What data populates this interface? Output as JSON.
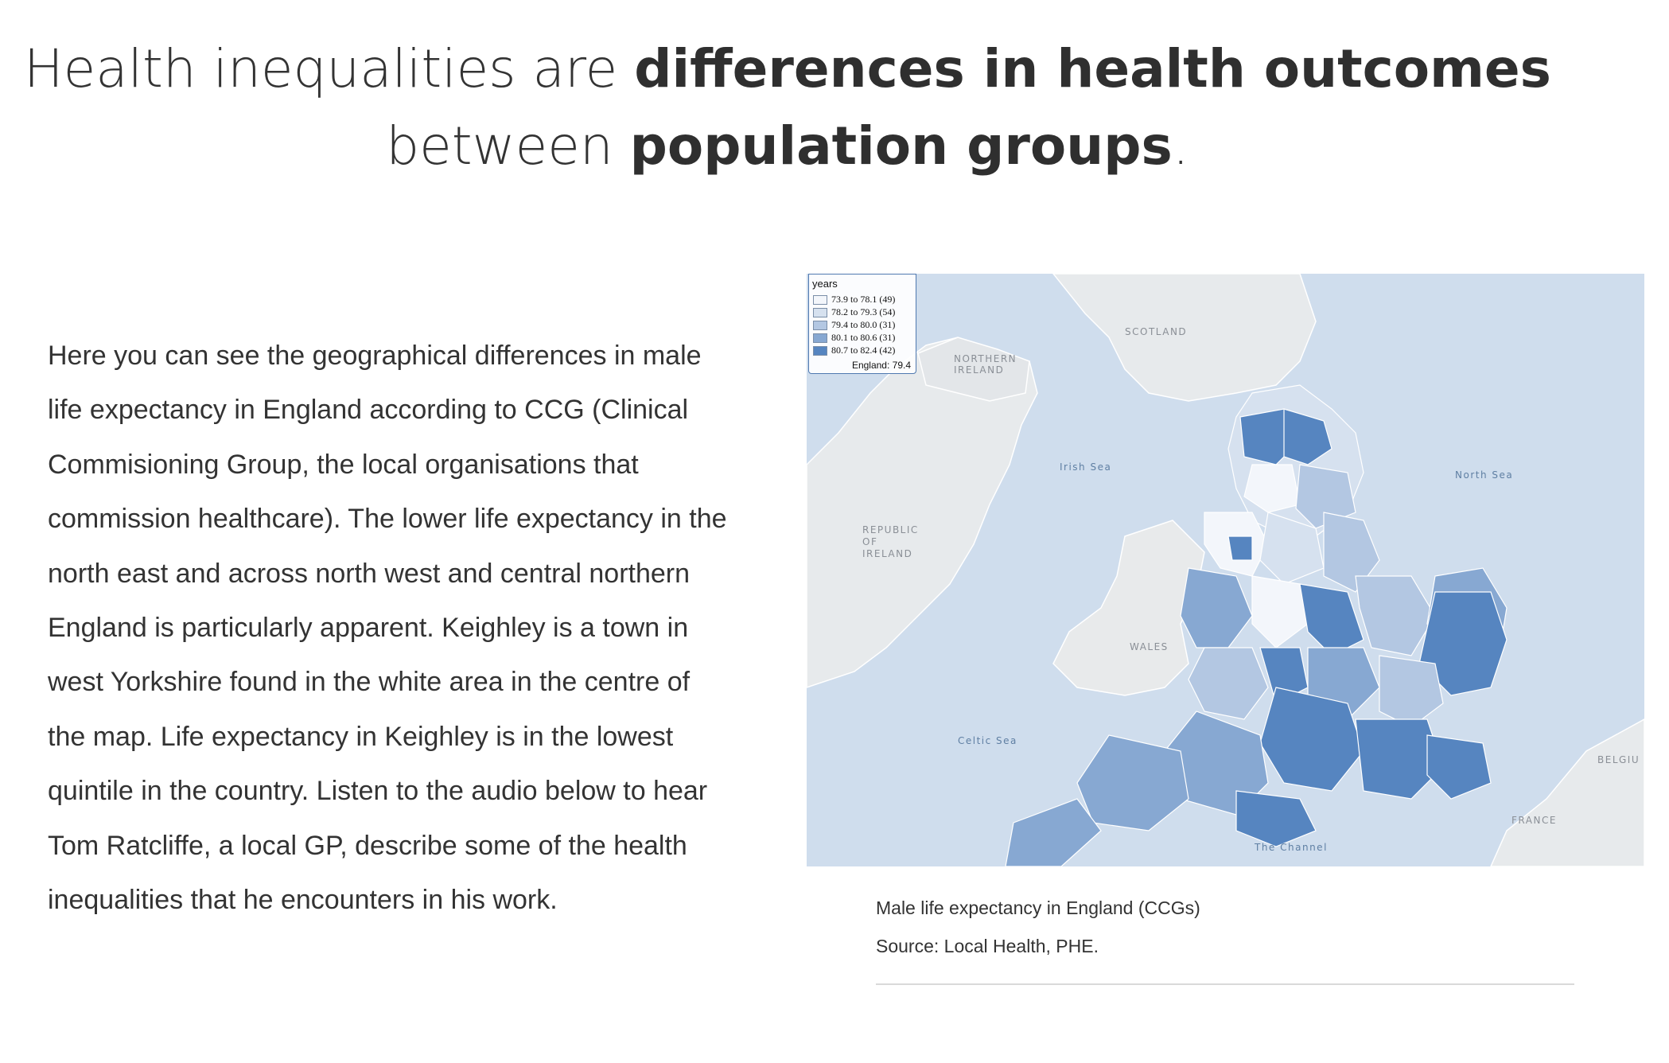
{
  "headline": {
    "line1_light": "Health inequalities are ",
    "line1_bold": "differences in health outcomes",
    "line2_light": "between ",
    "line2_bold": "population groups",
    "line2_end": "."
  },
  "body": {
    "text": "Here you can see the geographical differences in male life expectancy in England according to CCG (Clinical Commisioning Group, the local organisations that commission healthcare). The lower life expectancy in the north east and across north west and central northern England is particularly apparent. Keighley is a town in west Yorkshire found in the white area in the centre of the map. Life expectancy in Keighley is in the lowest quintile in the country. Listen to the audio below to hear Tom Ratcliffe, a local GP, describe some of the health inequalities that he encounters in his work."
  },
  "map": {
    "legend": {
      "title": "years",
      "items": [
        {
          "label": "73.9 to 78.1 (49)",
          "color": "#f3f6fb"
        },
        {
          "label": "78.2 to 79.3 (54)",
          "color": "#d6e1ef"
        },
        {
          "label": "79.4 to 80.0 (31)",
          "color": "#b3c7e2"
        },
        {
          "label": "80.1 to 80.6 (31)",
          "color": "#87a8d2"
        },
        {
          "label": "80.7 to 82.4 (42)",
          "color": "#5685c0"
        }
      ],
      "england": "England: 79.4"
    },
    "labels": {
      "scotland": "SCOTLAND",
      "northern_ireland_1": "NORTHERN",
      "northern_ireland_2": "IRELAND",
      "irish_sea": "Irish Sea",
      "north_sea": "North Sea",
      "republic_1": "REPUBLIC",
      "republic_2": "OF",
      "republic_3": "IRELAND",
      "wales": "WALES",
      "celtic_sea": "Celtic Sea",
      "channel": "The Channel",
      "france": "FRANCE",
      "belgium": "BELGIU"
    },
    "colors": {
      "sea": "#cfdded",
      "land": "#e7eaec",
      "border": "#ffffff"
    }
  },
  "caption": {
    "title": "Male life expectancy in England (CCGs)",
    "source": "Source: Local Health, PHE."
  }
}
